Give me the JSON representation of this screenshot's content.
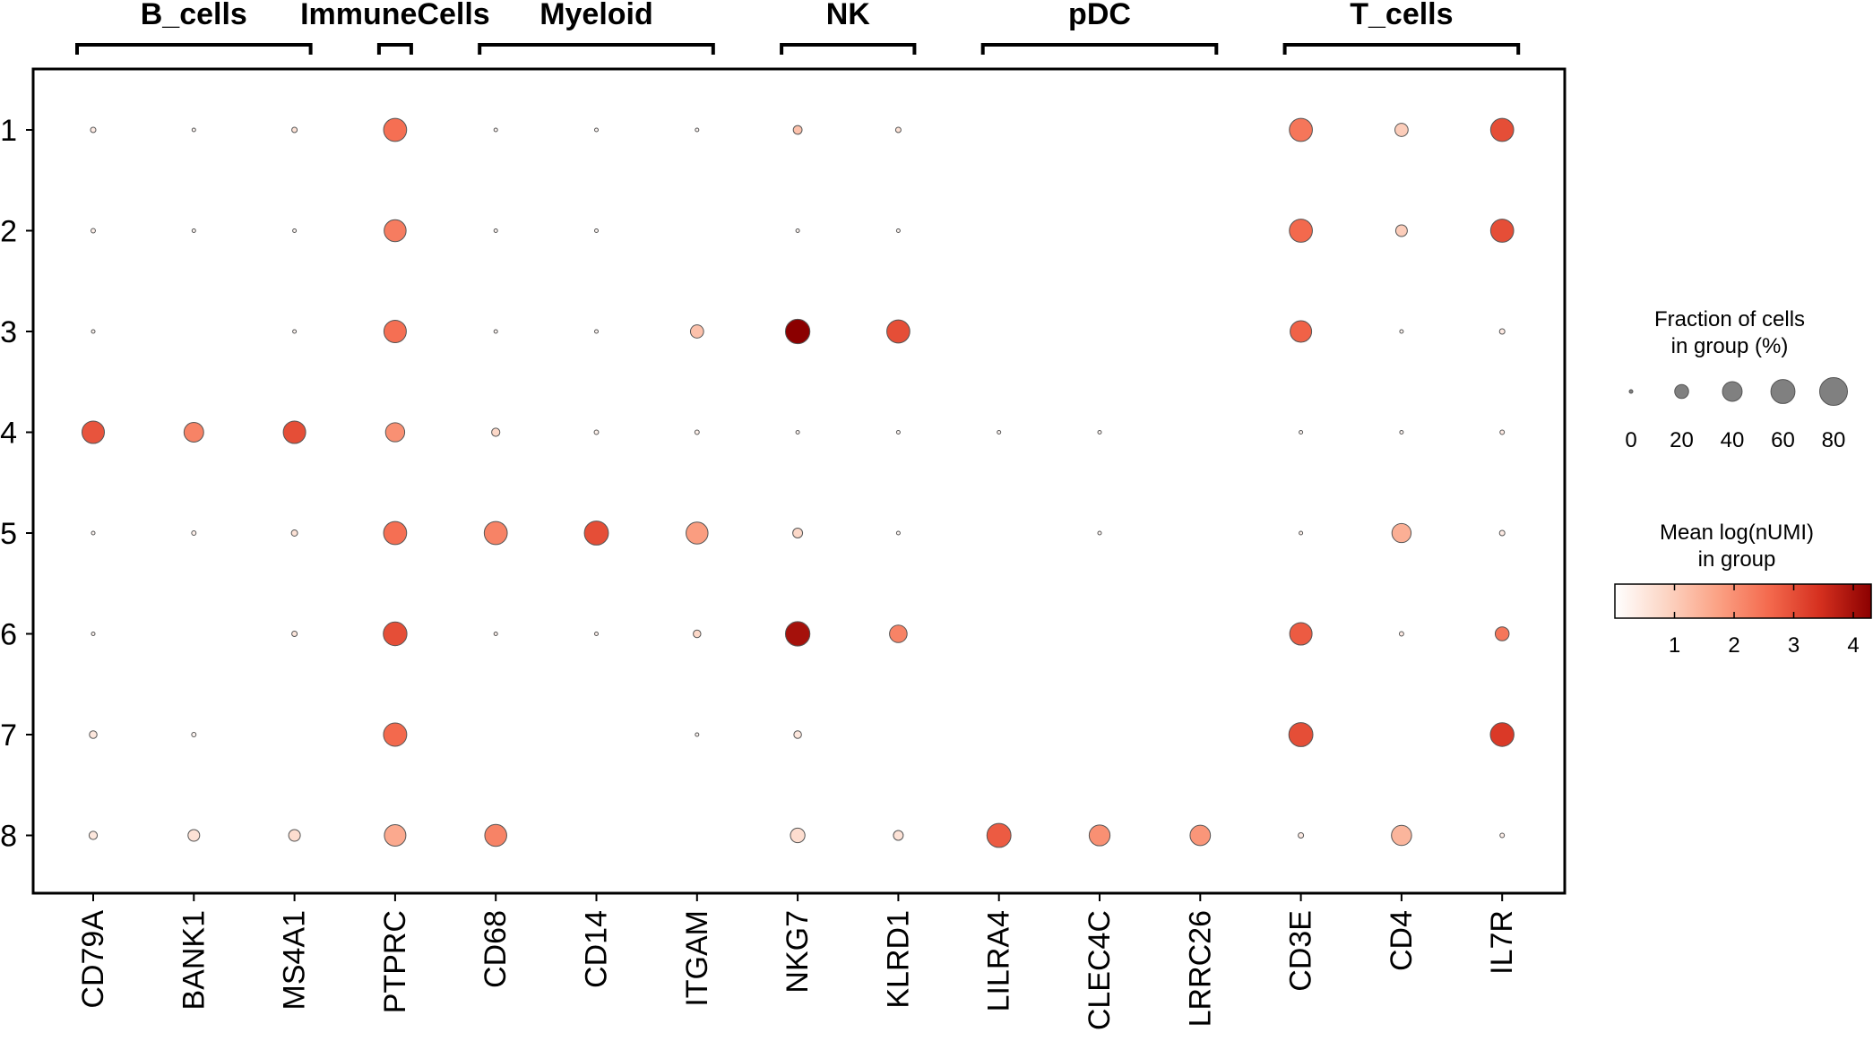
{
  "chart_data": {
    "type": "dotplot",
    "groups": [
      {
        "label": "B_cells",
        "genes": [
          "CD79A",
          "BANK1",
          "MS4A1"
        ]
      },
      {
        "label": "ImmuneCells",
        "genes": [
          "PTPRC"
        ]
      },
      {
        "label": "Myeloid",
        "genes": [
          "CD68",
          "CD14",
          "ITGAM"
        ]
      },
      {
        "label": "NK",
        "genes": [
          "NKG7",
          "KLRD1"
        ]
      },
      {
        "label": "pDC",
        "genes": [
          "LILRA4",
          "CLEC4C",
          "LRRC26"
        ]
      },
      {
        "label": "T_cells",
        "genes": [
          "CD3E",
          "CD4",
          "IL7R"
        ]
      }
    ],
    "genes": [
      "CD79A",
      "BANK1",
      "MS4A1",
      "PTPRC",
      "CD68",
      "CD14",
      "ITGAM",
      "NKG7",
      "KLRD1",
      "LILRA4",
      "CLEC4C",
      "LRRC26",
      "CD3E",
      "CD4",
      "IL7R"
    ],
    "clusters": [
      "1",
      "2",
      "3",
      "4",
      "5",
      "6",
      "7",
      "8"
    ],
    "fraction_pct": [
      [
        3,
        1,
        3,
        55,
        1,
        1,
        1,
        8,
        3,
        null,
        null,
        null,
        55,
        18,
        55
      ],
      [
        2,
        1,
        1,
        50,
        1,
        1,
        null,
        1,
        1,
        null,
        null,
        null,
        55,
        14,
        55
      ],
      [
        1,
        null,
        1,
        52,
        1,
        1,
        18,
        62,
        55,
        null,
        null,
        null,
        48,
        1,
        3
      ],
      [
        52,
        40,
        52,
        38,
        7,
        2,
        2,
        1,
        1,
        1,
        1,
        null,
        1,
        1,
        2
      ],
      [
        1,
        2,
        4,
        55,
        55,
        60,
        50,
        10,
        1,
        null,
        1,
        null,
        1,
        38,
        3
      ],
      [
        1,
        null,
        3,
        58,
        1,
        1,
        6,
        62,
        32,
        null,
        null,
        null,
        52,
        2,
        20
      ],
      [
        6,
        2,
        null,
        56,
        null,
        null,
        1,
        6,
        null,
        null,
        null,
        null,
        60,
        null,
        58
      ],
      [
        7,
        14,
        14,
        48,
        50,
        null,
        null,
        22,
        10,
        60,
        45,
        43,
        3,
        42,
        2
      ]
    ],
    "mean_log_numi": [
      [
        0.4,
        0.2,
        0.6,
        2.5,
        0.2,
        0.2,
        0.2,
        1.2,
        0.6,
        null,
        null,
        null,
        2.4,
        1.0,
        3.0
      ],
      [
        0.3,
        0.2,
        0.2,
        2.3,
        0.2,
        0.2,
        null,
        0.2,
        0.2,
        null,
        null,
        null,
        2.6,
        1.0,
        3.0
      ],
      [
        0.2,
        null,
        0.2,
        2.5,
        0.2,
        0.2,
        1.2,
        4.4,
        3.0,
        null,
        null,
        null,
        2.7,
        0.2,
        0.4
      ],
      [
        2.9,
        2.2,
        3.0,
        2.0,
        0.8,
        0.3,
        0.3,
        0.2,
        0.2,
        0.2,
        0.2,
        null,
        0.2,
        0.2,
        0.4
      ],
      [
        0.2,
        0.3,
        0.6,
        2.5,
        2.2,
        3.0,
        1.8,
        0.8,
        0.2,
        null,
        0.2,
        null,
        0.3,
        1.5,
        0.4
      ],
      [
        0.2,
        null,
        0.5,
        3.0,
        0.3,
        0.3,
        0.8,
        4.0,
        2.2,
        null,
        null,
        null,
        2.8,
        0.4,
        2.4
      ],
      [
        0.5,
        0.2,
        null,
        2.6,
        null,
        null,
        0.2,
        0.5,
        null,
        null,
        null,
        null,
        3.0,
        null,
        3.3
      ],
      [
        0.5,
        0.6,
        0.7,
        1.6,
        2.2,
        null,
        null,
        0.7,
        0.6,
        2.8,
        2.0,
        1.9,
        0.4,
        1.4,
        0.3
      ]
    ],
    "size_legend": {
      "title_line1": "Fraction of cells",
      "title_line2": "in group (%)",
      "values": [
        0,
        20,
        40,
        60,
        80
      ],
      "labels": [
        "0",
        "20",
        "40",
        "60",
        "80"
      ]
    },
    "color_legend": {
      "title_line1": "Mean log(nUMI)",
      "title_line2": "in group",
      "min": 0,
      "max": 4.3,
      "ticks": [
        1,
        2,
        3,
        4
      ],
      "tick_labels": [
        "1",
        "2",
        "3",
        "4"
      ],
      "colors": [
        "#ffffff",
        "#fcd5c4",
        "#fba285",
        "#f46a4e",
        "#d5301f",
        "#8b0000"
      ]
    },
    "colors": {
      "dot_stroke": "#555555",
      "frame": "#000000"
    }
  }
}
